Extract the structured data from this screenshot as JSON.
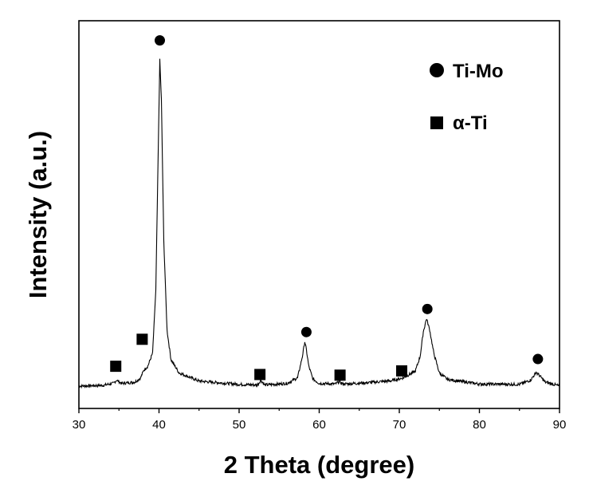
{
  "chart_data": {
    "type": "line",
    "title": "",
    "xlabel": "2 Theta (degree)",
    "ylabel": "Intensity (a.u.)",
    "xlim": [
      30,
      90
    ],
    "x_ticks": [
      30,
      40,
      50,
      60,
      70,
      80,
      90
    ],
    "y_ticks_shown": false,
    "grid": false,
    "legend_position": "top-right",
    "legend": [
      {
        "label": "Ti-Mo",
        "marker": "circle"
      },
      {
        "label": "α-Ti",
        "marker": "square"
      }
    ],
    "series": [
      {
        "name": "",
        "color": "#000000",
        "x": [
          30,
          33,
          34.3,
          34.7,
          35.3,
          37,
          37.7,
          38.1,
          38.6,
          39.2,
          39.6,
          39.9,
          40.1,
          40.3,
          40.6,
          41,
          41.5,
          42.5,
          45,
          50,
          52.3,
          52.7,
          53.2,
          56,
          57.3,
          57.9,
          58.2,
          58.4,
          58.7,
          59.2,
          60,
          62,
          62.5,
          63,
          66,
          69,
          70.5,
          72,
          72.6,
          73,
          73.4,
          73.8,
          74.3,
          75,
          76,
          80,
          85,
          86.4,
          87.1,
          87.5,
          88.2,
          90
        ],
        "y": [
          1.0,
          1.2,
          1.8,
          2.8,
          1.8,
          2.2,
          3.5,
          5.8,
          7.0,
          11,
          30,
          72,
          100,
          88,
          45,
          18,
          9,
          5,
          2.5,
          1.5,
          1.3,
          2.8,
          1.3,
          1.8,
          3.5,
          10,
          14.5,
          12,
          7,
          3.2,
          1.8,
          1.6,
          2.3,
          1.6,
          2.0,
          2.6,
          3.5,
          5.5,
          10,
          17.5,
          21.5,
          18,
          11,
          5,
          3,
          1.6,
          1.5,
          2.8,
          5.2,
          4.2,
          2.2,
          1.0
        ]
      }
    ],
    "markers": [
      {
        "type": "square",
        "x": 34.6,
        "y": 7.0
      },
      {
        "type": "square",
        "x": 37.9,
        "y": 15.2
      },
      {
        "type": "circle",
        "x": 40.1,
        "y": 106
      },
      {
        "type": "square",
        "x": 52.6,
        "y": 4.5
      },
      {
        "type": "circle",
        "x": 58.4,
        "y": 17.4
      },
      {
        "type": "square",
        "x": 62.6,
        "y": 4.3
      },
      {
        "type": "square",
        "x": 70.3,
        "y": 5.6
      },
      {
        "type": "circle",
        "x": 73.5,
        "y": 24.4
      },
      {
        "type": "circle",
        "x": 87.3,
        "y": 9.2
      }
    ]
  }
}
